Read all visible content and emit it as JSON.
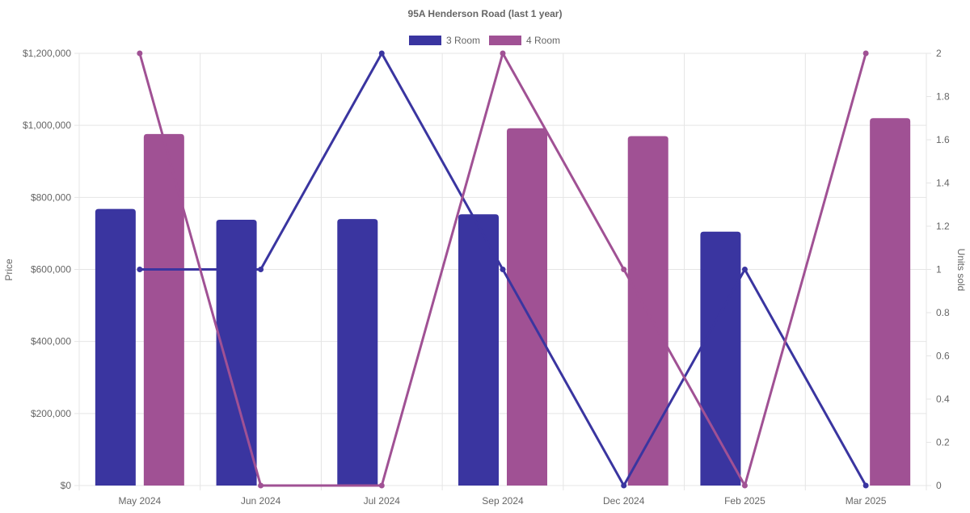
{
  "chart_data": {
    "type": "bar",
    "title": "95A Henderson Road (last 1 year)",
    "categories": [
      "May 2024",
      "Jun 2024",
      "Jul 2024",
      "Sep 2024",
      "Dec 2024",
      "Feb 2025",
      "Mar 2025"
    ],
    "ylabel_left": "Price",
    "ylabel_right": "Units sold",
    "y_left": {
      "min": 0,
      "max": 1200000,
      "ticks": [
        0,
        200000,
        400000,
        600000,
        800000,
        1000000,
        1200000
      ],
      "tick_labels": [
        "$0",
        "$200,000",
        "$400,000",
        "$600,000",
        "$800,000",
        "$1,000,000",
        "$1,200,000"
      ]
    },
    "y_right": {
      "min": 0,
      "max": 2,
      "ticks": [
        0,
        0.2,
        0.4,
        0.6,
        0.8,
        1,
        1.2,
        1.4,
        1.6,
        1.8,
        2
      ],
      "tick_labels": [
        "0",
        "0.2",
        "0.4",
        "0.6",
        "0.8",
        "1",
        "1.2",
        "1.4",
        "1.6",
        "1.8",
        "2"
      ]
    },
    "legend_position": "top-center",
    "grid": true,
    "series": [
      {
        "name": "3 Room",
        "color": "#3a35a0",
        "price": [
          768000,
          738000,
          740000,
          753000,
          null,
          705000,
          null
        ],
        "units": [
          1,
          1,
          2,
          1,
          0,
          1,
          0
        ]
      },
      {
        "name": "4 Room",
        "color": "#a05194",
        "price": [
          976000,
          null,
          null,
          992000,
          970000,
          null,
          1020000
        ],
        "units": [
          2,
          0,
          0,
          2,
          1,
          0,
          2
        ]
      }
    ]
  }
}
